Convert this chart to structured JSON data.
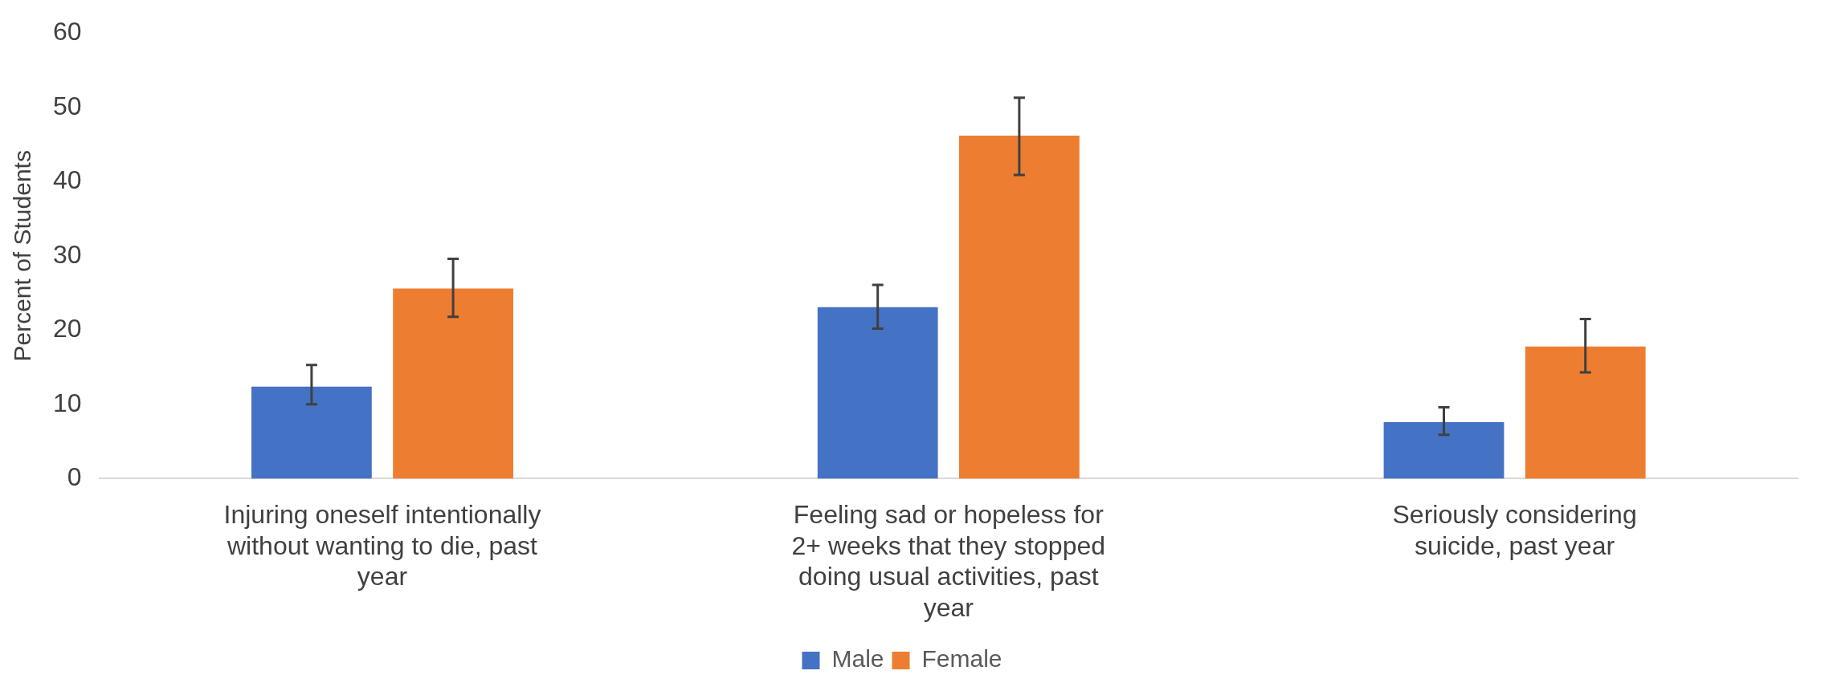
{
  "chart_data": {
    "type": "bar",
    "ylabel": "Percent of Students",
    "categories": [
      "Injuring oneself intentionally without wanting to die, past year",
      "Feeling sad or hopeless for 2+ weeks that they stopped doing usual activities, past year",
      "Seriously considering suicide, past year"
    ],
    "series": [
      {
        "name": "Male",
        "color": "#4472c4",
        "values": [
          12.4,
          23.1,
          7.6
        ],
        "errors": [
          [
            10.0,
            15.3
          ],
          [
            20.2,
            26.1
          ],
          [
            5.9,
            9.6
          ]
        ]
      },
      {
        "name": "Female",
        "color": "#ed7d31",
        "values": [
          25.6,
          46.2,
          17.8
        ],
        "errors": [
          [
            21.8,
            29.6
          ],
          [
            40.9,
            51.3
          ],
          [
            14.3,
            21.5
          ]
        ]
      }
    ],
    "ylim": [
      0,
      60
    ],
    "yticks": [
      0,
      10,
      20,
      30,
      40,
      50,
      60
    ],
    "grid": false,
    "legend": "bottom"
  }
}
